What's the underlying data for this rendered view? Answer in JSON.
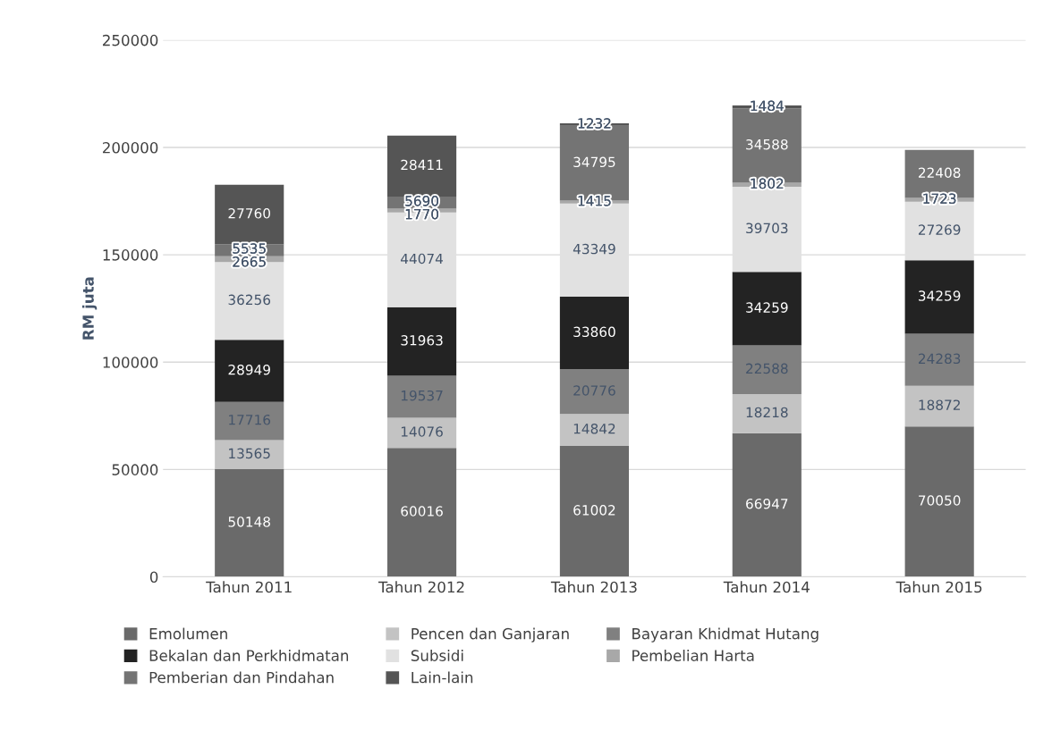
{
  "chart_data": {
    "type": "bar",
    "stacked": true,
    "ylabel": "RM juta",
    "categories": [
      "Tahun 2011",
      "Tahun 2012",
      "Tahun 2013",
      "Tahun 2014",
      "Tahun 2015"
    ],
    "series": [
      {
        "name": "Emolumen",
        "color": "#6a6a6a",
        "values": [
          50148,
          60016,
          61002,
          66947,
          70050
        ]
      },
      {
        "name": "Pencen dan Ganjaran",
        "color": "#c3c3c3",
        "values": [
          13565,
          14076,
          14842,
          18218,
          18872
        ]
      },
      {
        "name": "Bayaran Khidmat Hutang",
        "color": "#808080",
        "values": [
          17716,
          19537,
          20776,
          22588,
          24283
        ]
      },
      {
        "name": "Bekalan dan Perkhidmatan",
        "color": "#232323",
        "values": [
          28949,
          31963,
          33860,
          34259,
          34259
        ]
      },
      {
        "name": "Subsidi",
        "color": "#e1e1e1",
        "values": [
          36256,
          44074,
          43349,
          39703,
          27269
        ]
      },
      {
        "name": "Pembelian Harta",
        "color": "#a8a8a8",
        "values": [
          2665,
          1770,
          1415,
          1802,
          1723
        ]
      },
      {
        "name": "Pemberian dan Pindahan",
        "color": "#747474",
        "values": [
          5535,
          5690,
          34795,
          34588,
          22408
        ]
      },
      {
        "name": "Lain-lain",
        "color": "#555555",
        "values": [
          27760,
          28411,
          1232,
          1484,
          null
        ]
      }
    ],
    "ylim": [
      0,
      250000
    ],
    "yticks": [
      0,
      50000,
      100000,
      150000,
      200000,
      250000
    ],
    "grid": "y",
    "legend": "bottom",
    "data_labels": true
  }
}
